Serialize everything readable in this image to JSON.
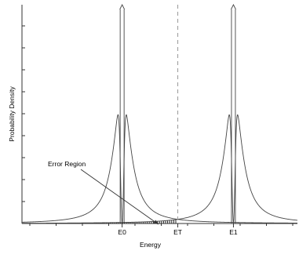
{
  "chart_data": {
    "type": "line",
    "title": "",
    "xlabel": "Energy",
    "ylabel": "Probability Density",
    "x_ticks": [
      {
        "label": "E0",
        "x": 0
      },
      {
        "label": "ET",
        "x": 1
      },
      {
        "label": "E1",
        "x": 2
      }
    ],
    "xlim": [
      -1.8,
      3.15
    ],
    "ylim": [
      0,
      1.15
    ],
    "series": [
      {
        "center": 0,
        "gamma": 0.18,
        "peak": 0.7,
        "split": 0.1
      },
      {
        "center": 2,
        "gamma": 0.18,
        "peak": 0.7,
        "split": 0.1
      }
    ],
    "arrows_at": [
      0,
      2
    ],
    "threshold_x": 1,
    "hatched_region": {
      "from": -1.8,
      "to": 1,
      "under_series": 1
    },
    "annotations": [
      {
        "text": "Error Region",
        "target_x": 0.65
      }
    ],
    "grid": false
  }
}
